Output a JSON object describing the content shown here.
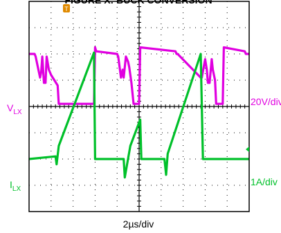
{
  "header_text": "FIGURE X: BUCK CONVERSION",
  "timebase_label": "2µs/div",
  "colors": {
    "ch1": "#e000e0",
    "ch2": "#00c02a",
    "trigger": "#e08a00",
    "grid": "#000000",
    "frame": "#000000",
    "background": "#ffffff"
  },
  "icons": {
    "trigger": "trigger-marker-icon",
    "ch2_level": "arrow-left-icon"
  },
  "chart_data": {
    "type": "line",
    "title": "",
    "xlabel": "2µs/div",
    "ylabel": "",
    "grid": true,
    "divisions": {
      "x": 10,
      "y": 8
    },
    "xlim": [
      0,
      20
    ],
    "x_units": "µs",
    "series": [
      {
        "name": "V_LX",
        "label_main": "V",
        "label_sub": "LX",
        "scale_label": "20V/div",
        "color": "#e000e0",
        "y_units": "div",
        "x": [
          0,
          0.1,
          0.5,
          0.6,
          0.8,
          1.0,
          1.1,
          1.2,
          1.35,
          1.5,
          1.6,
          1.8,
          2.0,
          2.6,
          2.7,
          5.9,
          6.0,
          6.1,
          8.0,
          8.1,
          8.35,
          8.5,
          8.6,
          8.8,
          9.0,
          9.1,
          9.3,
          9.5,
          9.6,
          10.0,
          10.1,
          13.3,
          13.4,
          13.5,
          15.6,
          15.7,
          16.0,
          16.15,
          16.25,
          16.4,
          16.6,
          16.7,
          16.9,
          17.0,
          17.1,
          17.6,
          17.7,
          19.6,
          19.7,
          20
        ],
        "y": [
          2.0,
          2.0,
          2.0,
          1.9,
          1.5,
          1.1,
          1.3,
          1.9,
          0.9,
          0.9,
          1.9,
          1.4,
          1.2,
          0.8,
          0.1,
          0.1,
          2.25,
          2.1,
          2.0,
          1.9,
          1.1,
          1.4,
          1.1,
          1.9,
          1.7,
          1.5,
          0.9,
          0.1,
          0.1,
          0.1,
          2.25,
          2.1,
          2.0,
          2.0,
          1.1,
          1.1,
          1.8,
          1.4,
          0.9,
          0.9,
          1.8,
          1.4,
          1.0,
          0.1,
          0.1,
          0.1,
          2.25,
          2.1,
          2.0,
          2.0
        ]
      },
      {
        "name": "I_LX",
        "label_main": "I",
        "label_sub": "LX",
        "scale_label": "1A/div",
        "color": "#00c02a",
        "y_units": "div",
        "x": [
          0,
          2.4,
          2.5,
          2.7,
          5.9,
          6.0,
          6.2,
          8.6,
          8.7,
          9.2,
          10.1,
          10.2,
          10.4,
          12.3,
          12.45,
          12.6,
          15.6,
          15.8,
          16.0,
          17.6,
          17.7,
          17.9,
          20
        ],
        "y": [
          -2.0,
          -1.9,
          -2.2,
          -1.5,
          2.05,
          -2.0,
          -2.0,
          -2.0,
          -2.7,
          -1.5,
          -0.5,
          -2.0,
          -2.0,
          -2.0,
          -2.6,
          -1.8,
          2.0,
          -2.0,
          -2.0,
          -2.0,
          -2.0,
          -2.0,
          -2.0
        ]
      }
    ]
  }
}
